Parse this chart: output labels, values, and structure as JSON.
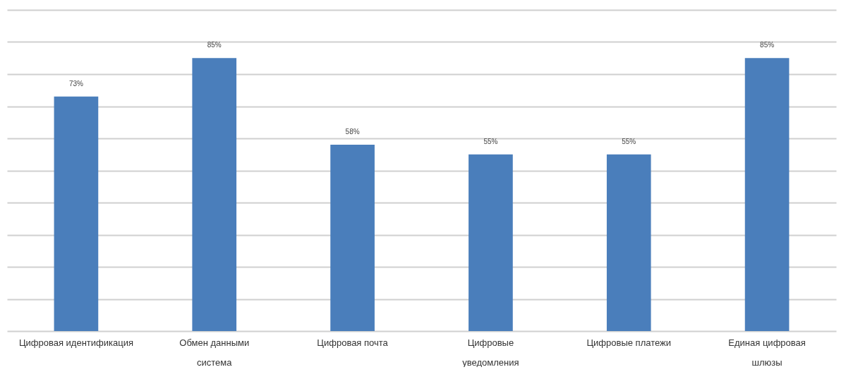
{
  "chart_data": {
    "type": "bar",
    "categories": [
      "Цифровая идентификация",
      "Обмен данными\nсистема",
      "Цифровая почта",
      "Цифровые\nуведомления",
      "Цифровые платежи",
      "Единая цифровая\nшлюзы"
    ],
    "values": [
      73,
      85,
      58,
      55,
      55,
      85
    ],
    "value_labels": [
      "73%",
      "85%",
      "58%",
      "55%",
      "55%",
      "85%"
    ],
    "color": "#4a7ebb",
    "ylim": [
      0,
      100
    ],
    "yticks": [
      {
        "value": 0,
        "label": null
      },
      {
        "value": 10,
        "label": null
      },
      {
        "value": 20,
        "label": null
      },
      {
        "value": 30,
        "label": null
      },
      {
        "value": 40,
        "label": null
      },
      {
        "value": 50,
        "label": null
      },
      {
        "value": 60,
        "label": null
      },
      {
        "value": 70,
        "label": null
      },
      {
        "value": 80,
        "label": null
      },
      {
        "value": 90,
        "label": null
      },
      {
        "value": 100,
        "label": null
      }
    ],
    "grid": "y",
    "tick_labels": "x"
  }
}
